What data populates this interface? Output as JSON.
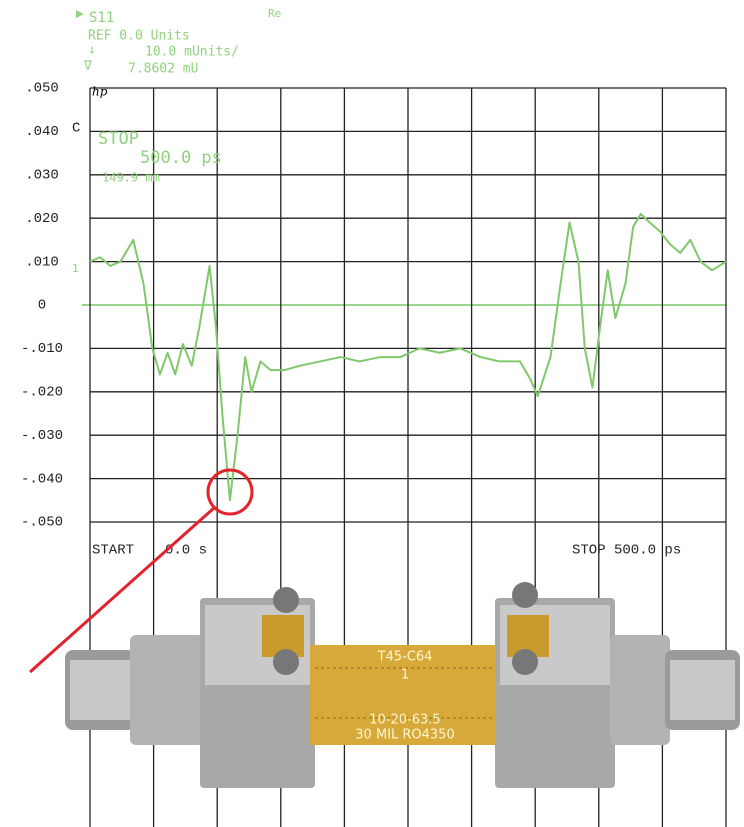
{
  "chart_data": {
    "type": "line",
    "annotations": [
      "S11",
      "Re",
      "REF 0.0 Units",
      "10.0 mUnits/",
      "7.8602 mU",
      "hp",
      "C",
      "STOP",
      "500.0 ps",
      "149.9 mm",
      "1",
      "START",
      "0.0 s",
      "STOP 500.0 ps"
    ],
    "photo_labels": [
      "T45-C64",
      "1",
      "10-20-63.5",
      "30 MIL RO4350"
    ],
    "x": [
      0,
      8,
      16,
      24,
      34,
      42,
      49,
      55,
      61,
      67,
      73,
      80,
      86,
      94,
      99,
      104,
      110,
      116,
      122,
      127,
      134,
      142,
      153,
      165,
      181,
      197,
      212,
      228,
      244,
      259,
      275,
      291,
      307,
      322,
      338,
      346,
      352,
      362,
      370,
      377,
      384,
      389,
      395,
      401,
      407,
      413,
      421,
      427,
      433,
      440,
      448,
      456,
      464,
      472,
      480,
      489,
      500
    ],
    "series": [
      {
        "color": "#7fc86c",
        "values": [
          0.01,
          0.011,
          0.009,
          0.01,
          0.015,
          0.005,
          -0.01,
          -0.016,
          -0.011,
          -0.016,
          -0.009,
          -0.014,
          -0.005,
          0.009,
          -0.005,
          -0.025,
          -0.045,
          -0.03,
          -0.012,
          -0.02,
          -0.013,
          -0.015,
          -0.015,
          -0.014,
          -0.013,
          -0.012,
          -0.013,
          -0.012,
          -0.012,
          -0.01,
          -0.011,
          -0.01,
          -0.012,
          -0.013,
          -0.013,
          -0.017,
          -0.021,
          -0.012,
          0.005,
          0.019,
          0.01,
          -0.01,
          -0.019,
          -0.005,
          0.008,
          -0.003,
          0.005,
          0.018,
          0.021,
          0.019,
          0.017,
          0.014,
          0.012,
          0.015,
          0.01,
          0.008,
          0.01
        ]
      }
    ],
    "xlim": [
      0,
      500
    ],
    "xticks": [
      0,
      50,
      100,
      150,
      200,
      250,
      300,
      350,
      400,
      450,
      500
    ],
    "ylim": [
      -0.05,
      0.05
    ],
    "yticks": [
      {
        "value": 0.05,
        "label": ".050"
      },
      {
        "value": 0.04,
        "label": ".040"
      },
      {
        "value": 0.03,
        "label": ".030"
      },
      {
        "value": 0.02,
        "label": ".020"
      },
      {
        "value": 0.01,
        "label": ".010"
      },
      0,
      {
        "value": -0.01,
        "label": "-.010"
      },
      {
        "value": -0.02,
        "label": "-.020"
      },
      {
        "value": -0.03,
        "label": "-.030"
      },
      {
        "value": -0.04,
        "label": "-.040"
      },
      {
        "value": -0.05,
        "label": "-.050"
      }
    ],
    "grid": true,
    "zero_line_color": "#9ad68a"
  }
}
